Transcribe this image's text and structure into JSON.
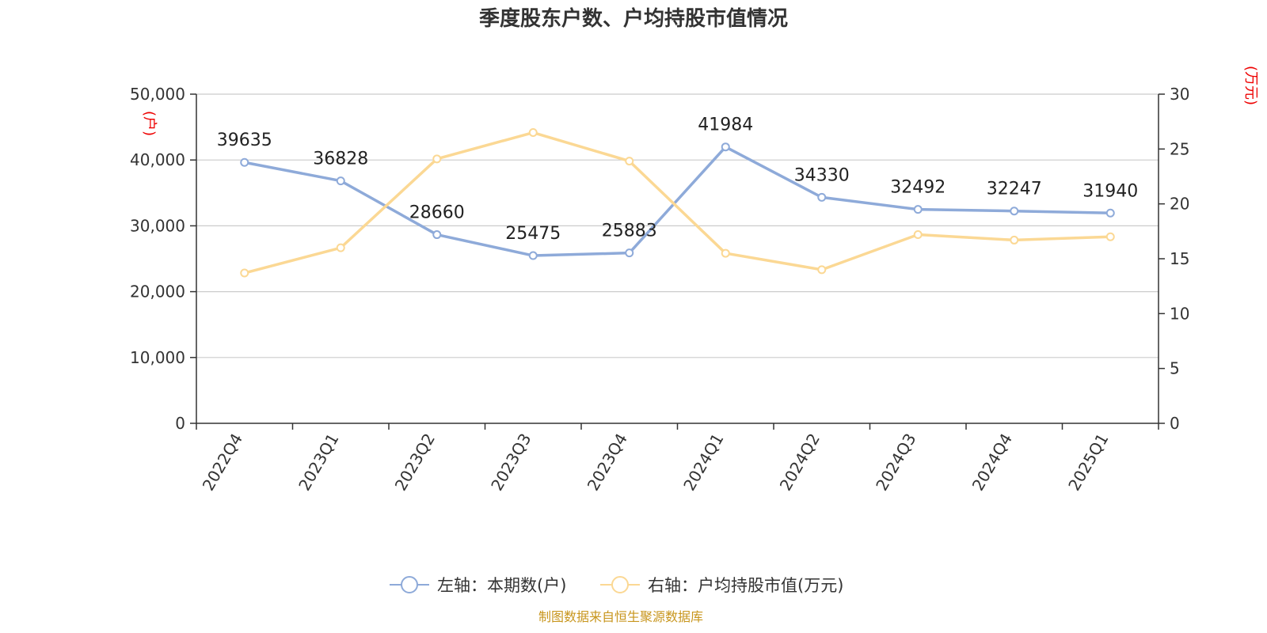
{
  "chart_data": {
    "type": "line",
    "title": "季度股东户数、户均持股市值情况",
    "categories": [
      "2022Q4",
      "2023Q1",
      "2023Q2",
      "2023Q3",
      "2023Q4",
      "2024Q1",
      "2024Q2",
      "2024Q3",
      "2024Q4",
      "2025Q1"
    ],
    "series": [
      {
        "name": "左轴：本期数(户)",
        "axis": "left",
        "color": "#8eaad9",
        "values": [
          39635,
          36828,
          28660,
          25475,
          25883,
          41984,
          34330,
          32492,
          32247,
          31940
        ],
        "labels": [
          "39635",
          "36828",
          "28660",
          "25475",
          "25883",
          "41984",
          "34330",
          "32492",
          "32247",
          "31940"
        ]
      },
      {
        "name": "右轴：户均持股市值(万元)",
        "axis": "right",
        "color": "#fbd894",
        "values": [
          13.7,
          16.0,
          24.1,
          26.5,
          23.9,
          15.5,
          14.0,
          17.2,
          16.7,
          17.0
        ]
      }
    ],
    "left_axis": {
      "unit": "(户)",
      "ylim": [
        0,
        50000
      ],
      "ticks": [
        "0",
        "10,000",
        "20,000",
        "30,000",
        "40,000",
        "50,000"
      ]
    },
    "right_axis": {
      "unit": "(万元)",
      "ylim": [
        0,
        30
      ],
      "ticks": [
        "0",
        "5",
        "10",
        "15",
        "20",
        "25",
        "30"
      ]
    },
    "grid": true,
    "legend_position": "bottom-center"
  },
  "source": "制图数据来自恒生聚源数据库"
}
